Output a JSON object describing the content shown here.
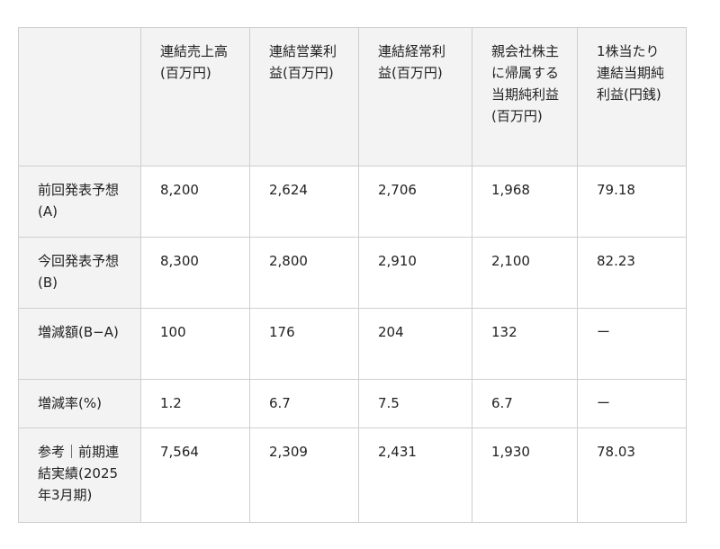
{
  "table": {
    "header": [
      "",
      "連結売上高(百万円)",
      "連結営業利益(百万円)",
      "連結経常利益(百万円)",
      "親会社株主に帰属する当期純利益(百万円)",
      "1株当たり連結当期純利益(円銭)"
    ],
    "rows": [
      [
        "前回発表予想(A)",
        "8,200",
        "2,624",
        "2,706",
        "1,968",
        "79.18"
      ],
      [
        "今回発表予想(B)",
        "8,300",
        "2,800",
        "2,910",
        "2,100",
        "82.23"
      ],
      [
        "増減額(B−A)",
        "100",
        "176",
        "204",
        "132",
        "ー"
      ],
      [
        "増減率(%)",
        "1.2",
        "6.7",
        "7.5",
        "6.7",
        "ー"
      ],
      [
        "参考｜前期連結実績(2025年3月期)",
        "7,564",
        "2,309",
        "2,431",
        "1,930",
        "78.03"
      ]
    ]
  }
}
